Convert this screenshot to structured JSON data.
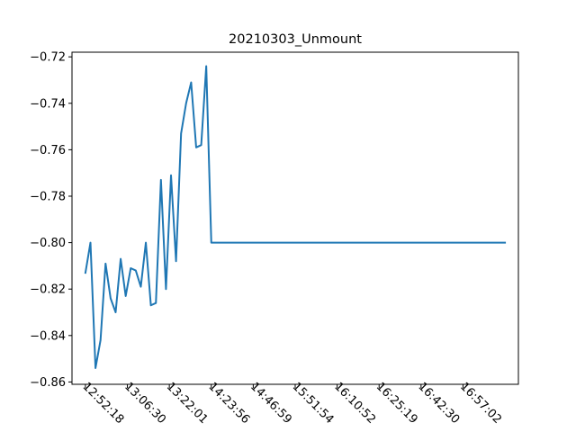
{
  "chart_data": {
    "type": "line",
    "title": "20210303_Unmount",
    "xlabel": "",
    "ylabel": "",
    "ylim": [
      -0.861,
      -0.718
    ],
    "yticks": [
      -0.72,
      -0.74,
      -0.76,
      -0.78,
      -0.8,
      -0.82,
      -0.84,
      -0.86
    ],
    "ytick_labels": [
      "−0.72",
      "−0.74",
      "−0.76",
      "−0.78",
      "−0.80",
      "−0.82",
      "−0.84",
      "−0.86"
    ],
    "xtick_labels": [
      "12:52:18",
      "13:06:30",
      "13:22:01",
      "14:23:56",
      "14:46:59",
      "15:51:54",
      "16:10:52",
      "16:25:19",
      "16:42:30",
      "16:57:02"
    ],
    "xtick_positions": [
      0,
      10,
      20,
      30,
      40,
      50,
      60,
      70,
      80,
      90
    ],
    "xlim": [
      -3.2,
      103.2
    ],
    "grid": false,
    "legend": false,
    "line_color": "#1f77b4",
    "series": [
      {
        "x": [
          0,
          1.2,
          2.4,
          3.6,
          4.8,
          6,
          7.2,
          8.4,
          9.6,
          10.8,
          12,
          13.2,
          14.4,
          15.6,
          16.8,
          18,
          19.2,
          20.4,
          21.6,
          22.8,
          24,
          25.2,
          26.4,
          27.6,
          28.8,
          30,
          31.4,
          100
        ],
        "values": [
          -0.813,
          -0.8,
          -0.854,
          -0.842,
          -0.809,
          -0.824,
          -0.83,
          -0.807,
          -0.823,
          -0.811,
          -0.812,
          -0.819,
          -0.8,
          -0.827,
          -0.826,
          -0.773,
          -0.82,
          -0.771,
          -0.808,
          -0.753,
          -0.74,
          -0.731,
          -0.759,
          -0.758,
          -0.724,
          -0.8,
          -0.8,
          -0.8
        ]
      }
    ]
  }
}
